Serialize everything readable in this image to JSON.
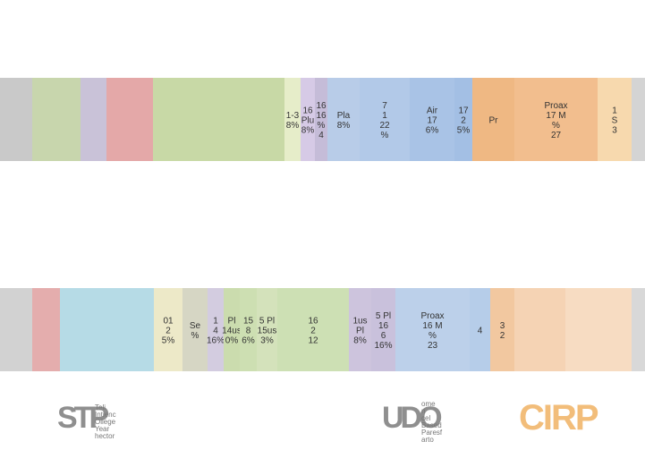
{
  "chart_data": {
    "type": "bar",
    "orientation": "horizontal-stacked",
    "rows": [
      {
        "segments": [
          {
            "color": "#c9c9c9",
            "labels": []
          },
          {
            "color": "#c8d6ad",
            "labels": []
          },
          {
            "color": "#c9c2d8",
            "labels": []
          },
          {
            "color": "#e4a8a8",
            "labels": []
          },
          {
            "color": "#c8d9a6",
            "labels": []
          },
          {
            "color": "#e6edc9",
            "labels": [
              "1-3",
              "8%"
            ]
          },
          {
            "color": "#d6cae6",
            "labels": [
              "16",
              "Plu",
              "8%"
            ]
          },
          {
            "color": "#c5bcd8",
            "labels": [
              "16",
              "16",
              "%",
              "4"
            ]
          },
          {
            "color": "#b8cce8",
            "labels": [
              "Pla",
              "8%"
            ]
          },
          {
            "color": "#b2c9e8",
            "labels": [
              "7",
              "1",
              "22",
              "%"
            ]
          },
          {
            "color": "#a9c3e6",
            "labels": [
              "Air",
              "17",
              "6%"
            ]
          },
          {
            "color": "#a3bfe4",
            "labels": [
              "17",
              "2",
              "5%"
            ]
          },
          {
            "color": "#efb883",
            "labels": [
              "Pr"
            ]
          },
          {
            "color": "#f2be8e",
            "labels": [
              "Proax",
              "17 M",
              "%",
              "27"
            ]
          },
          {
            "color": "#f7d9ae",
            "labels": [
              "1",
              "S",
              "3"
            ]
          },
          {
            "color": "#d4d4d4",
            "labels": []
          }
        ]
      },
      {
        "segments": [
          {
            "color": "#d2d2d2",
            "labels": []
          },
          {
            "color": "#e4adad",
            "labels": []
          },
          {
            "color": "#b6dbe6",
            "labels": []
          },
          {
            "color": "#ede9c8",
            "labels": [
              "01",
              "2",
              "5%"
            ]
          },
          {
            "color": "#d6d6c4",
            "labels": [
              "Se",
              "%"
            ]
          },
          {
            "color": "#d3cce0",
            "labels": [
              "1",
              "4",
              "16%"
            ]
          },
          {
            "color": "#cbdcae",
            "labels": [
              "Pl",
              "14us",
              "0%"
            ]
          },
          {
            "color": "#cddfb2",
            "labels": [
              "15",
              "8",
              "6%"
            ]
          },
          {
            "color": "#d4e2bb",
            "labels": [
              "5 Pl",
              "15us",
              "3%"
            ]
          },
          {
            "color": "#cde0b4",
            "labels": [
              "16",
              "2",
              "12"
            ]
          },
          {
            "color": "#cdc4dd",
            "labels": [
              "1us",
              "Pl",
              "8%"
            ]
          },
          {
            "color": "#c9c1dc",
            "labels": [
              "5 Pl",
              "16",
              "6",
              "16%"
            ]
          },
          {
            "color": "#bcd0ea",
            "labels": [
              "Proax",
              "16 M",
              "%",
              "23"
            ]
          },
          {
            "color": "#b6cde9",
            "labels": [
              "4"
            ]
          },
          {
            "color": "#f2c8a0",
            "labels": [
              "3",
              "2"
            ]
          },
          {
            "color": "#f5d3b4",
            "labels": []
          },
          {
            "color": "#f7dcc2",
            "labels": []
          },
          {
            "color": "#d8d8d8",
            "labels": []
          }
        ]
      }
    ]
  },
  "logos": {
    "left_mark": "STP",
    "left_text": [
      "Teli",
      "Intienc",
      "Ollege",
      "Year",
      "hector"
    ],
    "middle_mark": "UDO",
    "middle_text": [
      "ome",
      "n",
      "cel",
      "Based",
      "Paresf",
      "arto"
    ],
    "right_mark": "CIRP"
  },
  "colors": {
    "background": "#ffffff",
    "label_text": "#333333",
    "cirp_orange": "#f2bd7a"
  }
}
